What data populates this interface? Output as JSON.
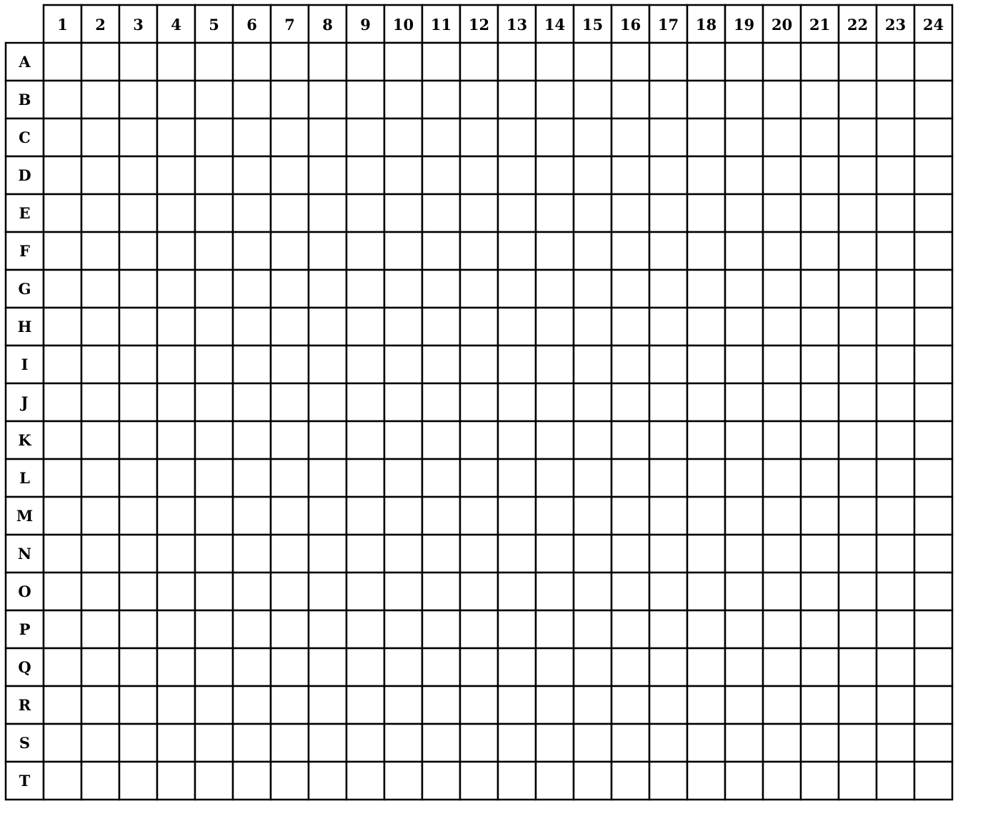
{
  "table": {
    "columns": [
      "1",
      "2",
      "3",
      "4",
      "5",
      "6",
      "7",
      "8",
      "9",
      "10",
      "11",
      "12",
      "13",
      "14",
      "15",
      "16",
      "17",
      "18",
      "19",
      "20",
      "21",
      "22",
      "23",
      "24"
    ],
    "rows": [
      "A",
      "B",
      "C",
      "D",
      "E",
      "F",
      "G",
      "H",
      "I",
      "J",
      "K",
      "L",
      "M",
      "N",
      "O",
      "P",
      "Q",
      "R",
      "S",
      "T"
    ]
  }
}
